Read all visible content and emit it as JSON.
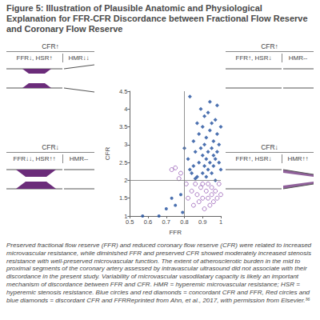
{
  "title": "Figure 5: Illustration of Plausible Anatomic and Physiological Explanation for FFR-CFR Discordance between Fractional Flow Reserve and Coronary Flow Reserve",
  "panels": [
    {
      "cfr": "CFR↑",
      "left": "FFR↓, HSR↑",
      "right": "HMR↓↓"
    },
    {
      "cfr": "CFR↑",
      "left": "FFR↑, HSR↓",
      "right": "HMR--"
    },
    {
      "cfr": "CFR↓",
      "left": "FFR↓↓, HSR↑↑",
      "right": "HMR--"
    },
    {
      "cfr": "CFR↓",
      "left": "FFR↑, HSR↓",
      "right": "HMR↑↑"
    }
  ],
  "chart_data": {
    "type": "scatter",
    "x_label": "FFR",
    "y_label": "CFR",
    "xlim": [
      0.5,
      1
    ],
    "ylim": [
      1,
      4.5
    ],
    "xticks": [
      0.5,
      0.6,
      0.7,
      0.8,
      0.9,
      1
    ],
    "yticks": [
      1,
      1.5,
      2,
      2.5,
      3,
      3.5,
      4,
      4.5
    ],
    "grid": false,
    "vlines": [
      0.8
    ],
    "hlines": [
      2
    ],
    "series": [
      {
        "color": "#1f4e9c",
        "marker": "diamond",
        "values": [
          [
            0.82,
            2.6
          ],
          [
            0.83,
            4.35
          ],
          [
            0.84,
            2.2
          ],
          [
            0.85,
            3.1
          ],
          [
            0.85,
            2.4
          ],
          [
            0.86,
            2.8
          ],
          [
            0.87,
            3.6
          ],
          [
            0.87,
            2.1
          ],
          [
            0.88,
            3.3
          ],
          [
            0.88,
            2.5
          ],
          [
            0.89,
            2.9
          ],
          [
            0.89,
            4.0
          ],
          [
            0.9,
            2.2
          ],
          [
            0.9,
            3.5
          ],
          [
            0.9,
            2.7
          ],
          [
            0.91,
            3.0
          ],
          [
            0.91,
            2.4
          ],
          [
            0.91,
            3.8
          ],
          [
            0.92,
            2.6
          ],
          [
            0.92,
            3.2
          ],
          [
            0.92,
            2.1
          ],
          [
            0.93,
            2.8
          ],
          [
            0.93,
            3.9
          ],
          [
            0.93,
            2.3
          ],
          [
            0.94,
            3.4
          ],
          [
            0.94,
            2.5
          ],
          [
            0.94,
            4.2
          ],
          [
            0.95,
            2.9
          ],
          [
            0.95,
            2.2
          ],
          [
            0.95,
            3.6
          ],
          [
            0.96,
            2.7
          ],
          [
            0.96,
            3.1
          ],
          [
            0.96,
            2.4
          ],
          [
            0.97,
            3.7
          ],
          [
            0.97,
            2.6
          ],
          [
            0.97,
            2.0
          ],
          [
            0.98,
            3.3
          ],
          [
            0.98,
            2.8
          ],
          [
            0.98,
            4.1
          ],
          [
            0.99,
            2.5
          ],
          [
            0.99,
            3.0
          ],
          [
            1.0,
            2.3
          ],
          [
            1.0,
            3.5
          ],
          [
            0.86,
            2.05
          ],
          [
            0.83,
            2.3
          ],
          [
            0.8,
            2.9
          ]
        ]
      },
      {
        "color": "#9a62b8",
        "marker": "open_circle",
        "values": [
          [
            0.81,
            1.9
          ],
          [
            0.82,
            1.5
          ],
          [
            0.84,
            1.7
          ],
          [
            0.85,
            1.3
          ],
          [
            0.86,
            1.9
          ],
          [
            0.87,
            1.6
          ],
          [
            0.88,
            1.4
          ],
          [
            0.89,
            1.8
          ],
          [
            0.9,
            1.5
          ],
          [
            0.9,
            1.9
          ],
          [
            0.91,
            1.2
          ],
          [
            0.92,
            1.7
          ],
          [
            0.93,
            1.5
          ],
          [
            0.93,
            1.9
          ],
          [
            0.94,
            1.3
          ],
          [
            0.95,
            1.6
          ],
          [
            0.95,
            1.8
          ],
          [
            0.96,
            1.4
          ],
          [
            0.97,
            1.7
          ],
          [
            0.98,
            1.5
          ],
          [
            0.99,
            1.9
          ],
          [
            1.0,
            1.6
          ],
          [
            0.73,
            2.3
          ],
          [
            0.75,
            2.35
          ],
          [
            0.78,
            2.2
          ],
          [
            0.77,
            2.05
          ]
        ]
      },
      {
        "color": "#1f4e9c",
        "marker": "circle",
        "values": [
          [
            0.57,
            1.0
          ],
          [
            0.66,
            1.0
          ],
          [
            0.7,
            1.2
          ],
          [
            0.73,
            1.5
          ],
          [
            0.75,
            1.3
          ],
          [
            0.78,
            1.6
          ],
          [
            0.79,
            1.1
          ]
        ]
      }
    ]
  },
  "caption": "Preserved fractional flow reserve (FFR) and reduced coronary flow reserve (CFR) were related to increased microvascular resistance, while diminished FFR and preserved CFR showed moderately increased stenosis resistance with well-preserved microvascular function. The extent of atherosclerotic burden in the mid to proximal segments of the coronary artery assessed by intravascular ultrasound did not associate with their discordance in the present study. Variability of microvascular vasodilatary capacity is likely an important mechanism of discordance between FFR and CFR. HMR = hyperemic microvascular resistance; HSR = hyperemic stenosis resistance. Blue circles and red diamonds = concordant CFR and FFR, Red circles and blue diamonds = discordant CFR and FFRReprinted from Ahn, et al., 2017, with permission from Elsevier.³⁶"
}
